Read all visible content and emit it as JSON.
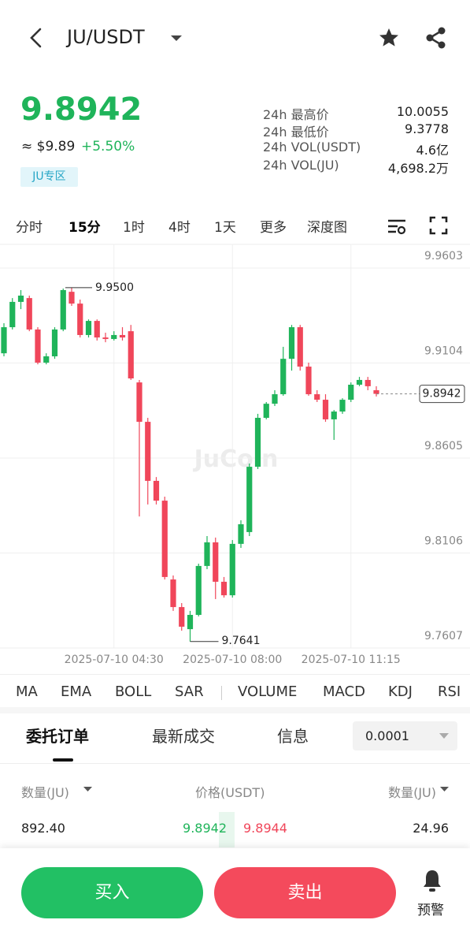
{
  "header": {
    "title": "JU/USDT"
  },
  "ticker": {
    "price": "9.8942",
    "usd": "≈ $9.89",
    "change": "+5.50%",
    "zone": "JU专区",
    "stats": [
      {
        "label": "24h 最高价",
        "value": "10.0055"
      },
      {
        "label": "24h 最低价",
        "value": "9.3778"
      },
      {
        "label": "24h VOL(USDT)",
        "value": "4.6亿"
      },
      {
        "label": "24h VOL(JU)",
        "value": "4,698.2万"
      }
    ]
  },
  "timeframes": [
    "分时",
    "15分",
    "1时",
    "4时",
    "1天",
    "更多",
    "深度图"
  ],
  "chart_data": {
    "type": "candlestick",
    "watermark": "JuCoin",
    "categories": [
      null,
      null,
      null,
      null,
      null,
      null,
      null,
      null,
      null,
      null,
      null,
      null,
      null,
      "2025-07-10 04:30",
      null,
      null,
      null,
      null,
      null,
      null,
      null,
      null,
      null,
      null,
      null,
      null,
      null,
      "2025-07-10 08:00",
      null,
      null,
      null,
      null,
      null,
      null,
      null,
      null,
      null,
      null,
      null,
      null,
      null,
      "2025-07-10 11:15",
      null,
      null,
      null
    ],
    "open": [
      9.9155,
      9.9292,
      9.9425,
      9.9445,
      9.928,
      9.9106,
      9.9139,
      9.928,
      9.9478,
      9.9416,
      9.9251,
      9.9325,
      9.9238,
      9.923,
      9.9251,
      9.9271,
      9.9002,
      9.8795,
      9.8485,
      9.8381,
      9.7967,
      9.7822,
      9.7706,
      9.7781,
      9.8038,
      9.8162,
      9.7955,
      9.7884,
      9.8154,
      9.8216,
      9.8559,
      9.8816,
      9.889,
      9.894,
      9.9126,
      9.9292,
      9.9085,
      9.894,
      9.8911,
      9.8808,
      9.8849,
      9.8911,
      9.899,
      9.9015,
      9.8961
    ],
    "high": [
      9.9313,
      9.9445,
      9.9487,
      9.9458,
      9.9292,
      9.9155,
      9.9292,
      9.9495,
      9.95,
      9.9437,
      9.9333,
      9.9333,
      9.9263,
      9.9271,
      9.9292,
      9.9304,
      9.9015,
      9.8816,
      9.8505,
      9.8402,
      9.7988,
      9.7843,
      9.7802,
      9.805,
      9.8195,
      9.8187,
      9.798,
      9.8174,
      9.8278,
      9.8576,
      9.8837,
      9.8899,
      9.8961,
      9.9189,
      9.9304,
      9.9304,
      9.9106,
      9.8961,
      9.894,
      9.8857,
      9.8919,
      9.9002,
      9.9031,
      9.9031,
      9.8982
    ],
    "low": [
      9.9139,
      9.928,
      9.9387,
      9.9271,
      9.9097,
      9.9097,
      9.9126,
      9.9271,
      9.9404,
      9.9238,
      9.9238,
      9.9222,
      9.9213,
      9.9222,
      9.9222,
      9.9015,
      9.8298,
      9.8361,
      9.8361,
      9.7967,
      9.7802,
      9.7698,
      9.7641,
      9.7773,
      9.8021,
      9.7864,
      9.7872,
      9.7872,
      9.8133,
      9.8195,
      9.8547,
      9.8808,
      9.8878,
      9.8932,
      9.9064,
      9.9064,
      9.8932,
      9.8899,
      9.8795,
      9.87,
      9.8837,
      9.8899,
      9.8982,
      9.8961,
      9.8928
    ],
    "close": [
      9.9292,
      9.9425,
      9.9458,
      9.928,
      9.9106,
      9.9139,
      9.928,
      9.9487,
      9.9416,
      9.9251,
      9.9325,
      9.9238,
      9.923,
      9.9251,
      9.9238,
      9.9023,
      9.8795,
      9.8485,
      9.8381,
      9.798,
      9.7822,
      9.7719,
      9.7781,
      9.8038,
      9.8162,
      9.7955,
      9.7884,
      9.8154,
      9.8257,
      9.8559,
      9.8816,
      9.889,
      9.894,
      9.9126,
      9.9292,
      9.9085,
      9.894,
      9.8911,
      9.8808,
      9.8849,
      9.8911,
      9.899,
      9.9015,
      9.8982,
      9.8942
    ],
    "up_color": "#1fb45a",
    "down_color": "#f0465a",
    "ylim": [
      9.7607,
      9.9727
    ],
    "yticks": [
      9.9603,
      9.9104,
      9.8605,
      9.8106,
      9.7607
    ],
    "grid": true,
    "high_label": {
      "value": 9.95,
      "label": "9.9500"
    },
    "low_label": 9.7641,
    "last_price_label": 9.8942
  },
  "indicators": [
    "MA",
    "EMA",
    "BOLL",
    "SAR",
    "VOLUME",
    "MACD",
    "KDJ",
    "RSI"
  ],
  "tabs": [
    "委托订单",
    "最新成交",
    "信息"
  ],
  "precision": "0.0001",
  "orderbook": {
    "headers": [
      "数量(JU)",
      "价格(USDT)",
      "数量(JU)"
    ],
    "rows": [
      [
        "892.40",
        "9.8942",
        "9.8944",
        "24.96"
      ]
    ]
  },
  "footer": {
    "buy": "买入",
    "sell": "卖出",
    "alert": "预警"
  }
}
